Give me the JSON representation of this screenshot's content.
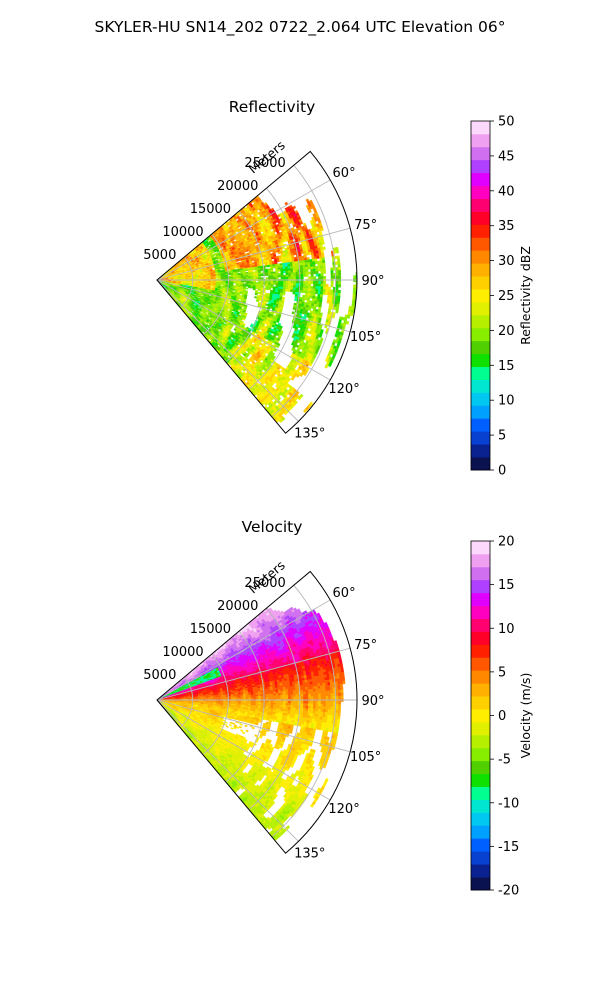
{
  "figure": {
    "suptitle": "SKYLER-HU  SN14_202  0722_2.064 UTC Elevation 06°"
  },
  "chart_data": [
    {
      "type": "heatmap",
      "projection": "polar-sector",
      "title": "Reflectivity",
      "range_label": "Meters",
      "range_ticks": [
        5000,
        10000,
        15000,
        20000,
        25000
      ],
      "range_tick_labels": [
        "5000",
        "10000",
        "15000",
        "20000",
        "25000"
      ],
      "range_max": 28000,
      "azimuth_range_deg": [
        50,
        140
      ],
      "azimuth_ticks": [
        60,
        75,
        90,
        105,
        120,
        135
      ],
      "azimuth_tick_labels": [
        "60°",
        "75°",
        "90°",
        "105°",
        "120°",
        "135°"
      ],
      "grid": true,
      "colorbar": {
        "label": "Reflectivity dBZ",
        "vmin": 0,
        "vmax": 50,
        "ticks": [
          0,
          5,
          10,
          15,
          20,
          25,
          30,
          35,
          40,
          45,
          50
        ],
        "tick_labels": [
          "0",
          "5",
          "10",
          "15",
          "20",
          "25",
          "30",
          "35",
          "40",
          "45",
          "50"
        ],
        "colors": [
          "#0b1250",
          "#0a2290",
          "#0840d0",
          "#0060ff",
          "#00a0ff",
          "#00c8f0",
          "#00e6d0",
          "#00ff90",
          "#10e000",
          "#50d000",
          "#88ee00",
          "#b6f000",
          "#e0f000",
          "#ffee00",
          "#ffd000",
          "#ffb000",
          "#ff8800",
          "#ff5800",
          "#ff2000",
          "#ff0028",
          "#ff0070",
          "#ff00c0",
          "#e000ff",
          "#b040ff",
          "#d070f0",
          "#f0a0f0",
          "#fcd8fc"
        ]
      },
      "field": {
        "value_range_observed": [
          10,
          45
        ],
        "dominant_values": [
          18,
          22,
          25,
          28,
          36
        ],
        "description": ""
      }
    },
    {
      "type": "heatmap",
      "projection": "polar-sector",
      "title": "Velocity",
      "range_label": "Meters",
      "range_ticks": [
        5000,
        10000,
        15000,
        20000,
        25000
      ],
      "range_tick_labels": [
        "5000",
        "10000",
        "15000",
        "20000",
        "25000"
      ],
      "range_max": 28000,
      "azimuth_range_deg": [
        50,
        140
      ],
      "azimuth_ticks": [
        60,
        75,
        90,
        105,
        120,
        135
      ],
      "azimuth_tick_labels": [
        "60°",
        "75°",
        "90°",
        "105°",
        "120°",
        "135°"
      ],
      "grid": true,
      "colorbar": {
        "label": "Velocity (m/s)",
        "vmin": -20,
        "vmax": 20,
        "ticks": [
          -20,
          -15,
          -10,
          -5,
          0,
          5,
          10,
          15,
          20
        ],
        "tick_labels": [
          "-20",
          "-15",
          "-10",
          "-5",
          "0",
          "5",
          "10",
          "15",
          "20"
        ],
        "colors": [
          "#0b1250",
          "#0a2290",
          "#0840d0",
          "#0060ff",
          "#00a0ff",
          "#00c8f0",
          "#00e6d0",
          "#00ff90",
          "#10e000",
          "#50d000",
          "#88ee00",
          "#b6f000",
          "#e0f000",
          "#ffee00",
          "#ffd000",
          "#ffb000",
          "#ff8800",
          "#ff5800",
          "#ff2000",
          "#ff0028",
          "#ff0070",
          "#ff00c0",
          "#e000ff",
          "#b040ff",
          "#d070f0",
          "#f0a0f0",
          "#fcd8fc"
        ]
      },
      "field": {
        "value_range_observed": [
          -12,
          16
        ],
        "dominant_values": [
          12,
          10,
          5,
          0,
          -3
        ],
        "description": ""
      }
    }
  ]
}
